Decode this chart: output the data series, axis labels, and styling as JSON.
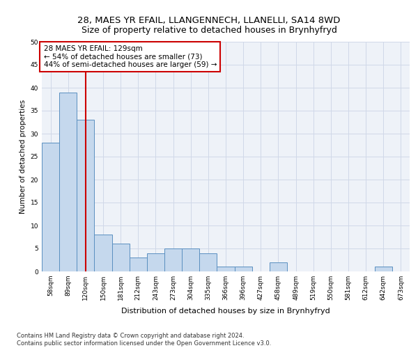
{
  "title": "28, MAES YR EFAIL, LLANGENNECH, LLANELLI, SA14 8WD",
  "subtitle": "Size of property relative to detached houses in Brynhyfryd",
  "xlabel": "Distribution of detached houses by size in Brynhyfryd",
  "ylabel": "Number of detached properties",
  "categories": [
    "58sqm",
    "89sqm",
    "120sqm",
    "150sqm",
    "181sqm",
    "212sqm",
    "243sqm",
    "273sqm",
    "304sqm",
    "335sqm",
    "366sqm",
    "396sqm",
    "427sqm",
    "458sqm",
    "489sqm",
    "519sqm",
    "550sqm",
    "581sqm",
    "612sqm",
    "642sqm",
    "673sqm"
  ],
  "values": [
    28,
    39,
    33,
    8,
    6,
    3,
    4,
    5,
    5,
    4,
    1,
    1,
    0,
    2,
    0,
    0,
    0,
    0,
    0,
    1,
    0
  ],
  "bar_color": "#c5d8ed",
  "bar_edge_color": "#5a8fc0",
  "highlight_index": 2,
  "vline_color": "#cc0000",
  "annotation_line1": "28 MAES YR EFAIL: 129sqm",
  "annotation_line2": "← 54% of detached houses are smaller (73)",
  "annotation_line3": "44% of semi-detached houses are larger (59) →",
  "annotation_box_color": "#ffffff",
  "annotation_box_edge": "#cc0000",
  "ylim": [
    0,
    50
  ],
  "yticks": [
    0,
    5,
    10,
    15,
    20,
    25,
    30,
    35,
    40,
    45,
    50
  ],
  "grid_color": "#d0d8e8",
  "background_color": "#eef2f8",
  "footer": "Contains HM Land Registry data © Crown copyright and database right 2024.\nContains public sector information licensed under the Open Government Licence v3.0.",
  "title_fontsize": 9.5,
  "xlabel_fontsize": 8,
  "ylabel_fontsize": 7.5,
  "tick_fontsize": 6.5,
  "annotation_fontsize": 7.5,
  "footer_fontsize": 6
}
